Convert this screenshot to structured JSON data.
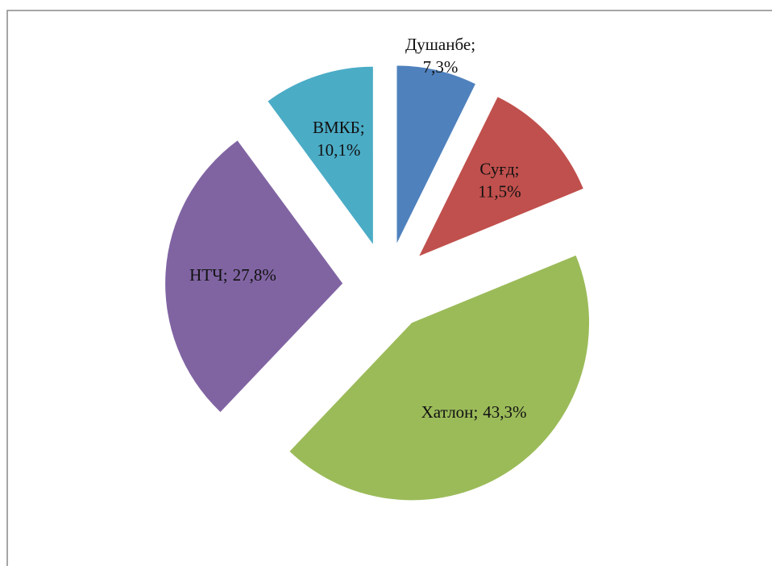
{
  "chart_data": {
    "type": "pie",
    "categories": [
      "Душанбе",
      "Суғд",
      "Хатлон",
      "НТЧ",
      "ВМКБ"
    ],
    "values": [
      7.3,
      11.5,
      43.3,
      27.8,
      10.1
    ],
    "value_labels": [
      "7,3%",
      "11,5%",
      "43,3%",
      "27,8%",
      "10,1%"
    ],
    "label_separator": ";",
    "colors": [
      "#4f81bd",
      "#c0504d",
      "#9bbb59",
      "#8064a2",
      "#4bacc6"
    ],
    "exploded": true
  }
}
